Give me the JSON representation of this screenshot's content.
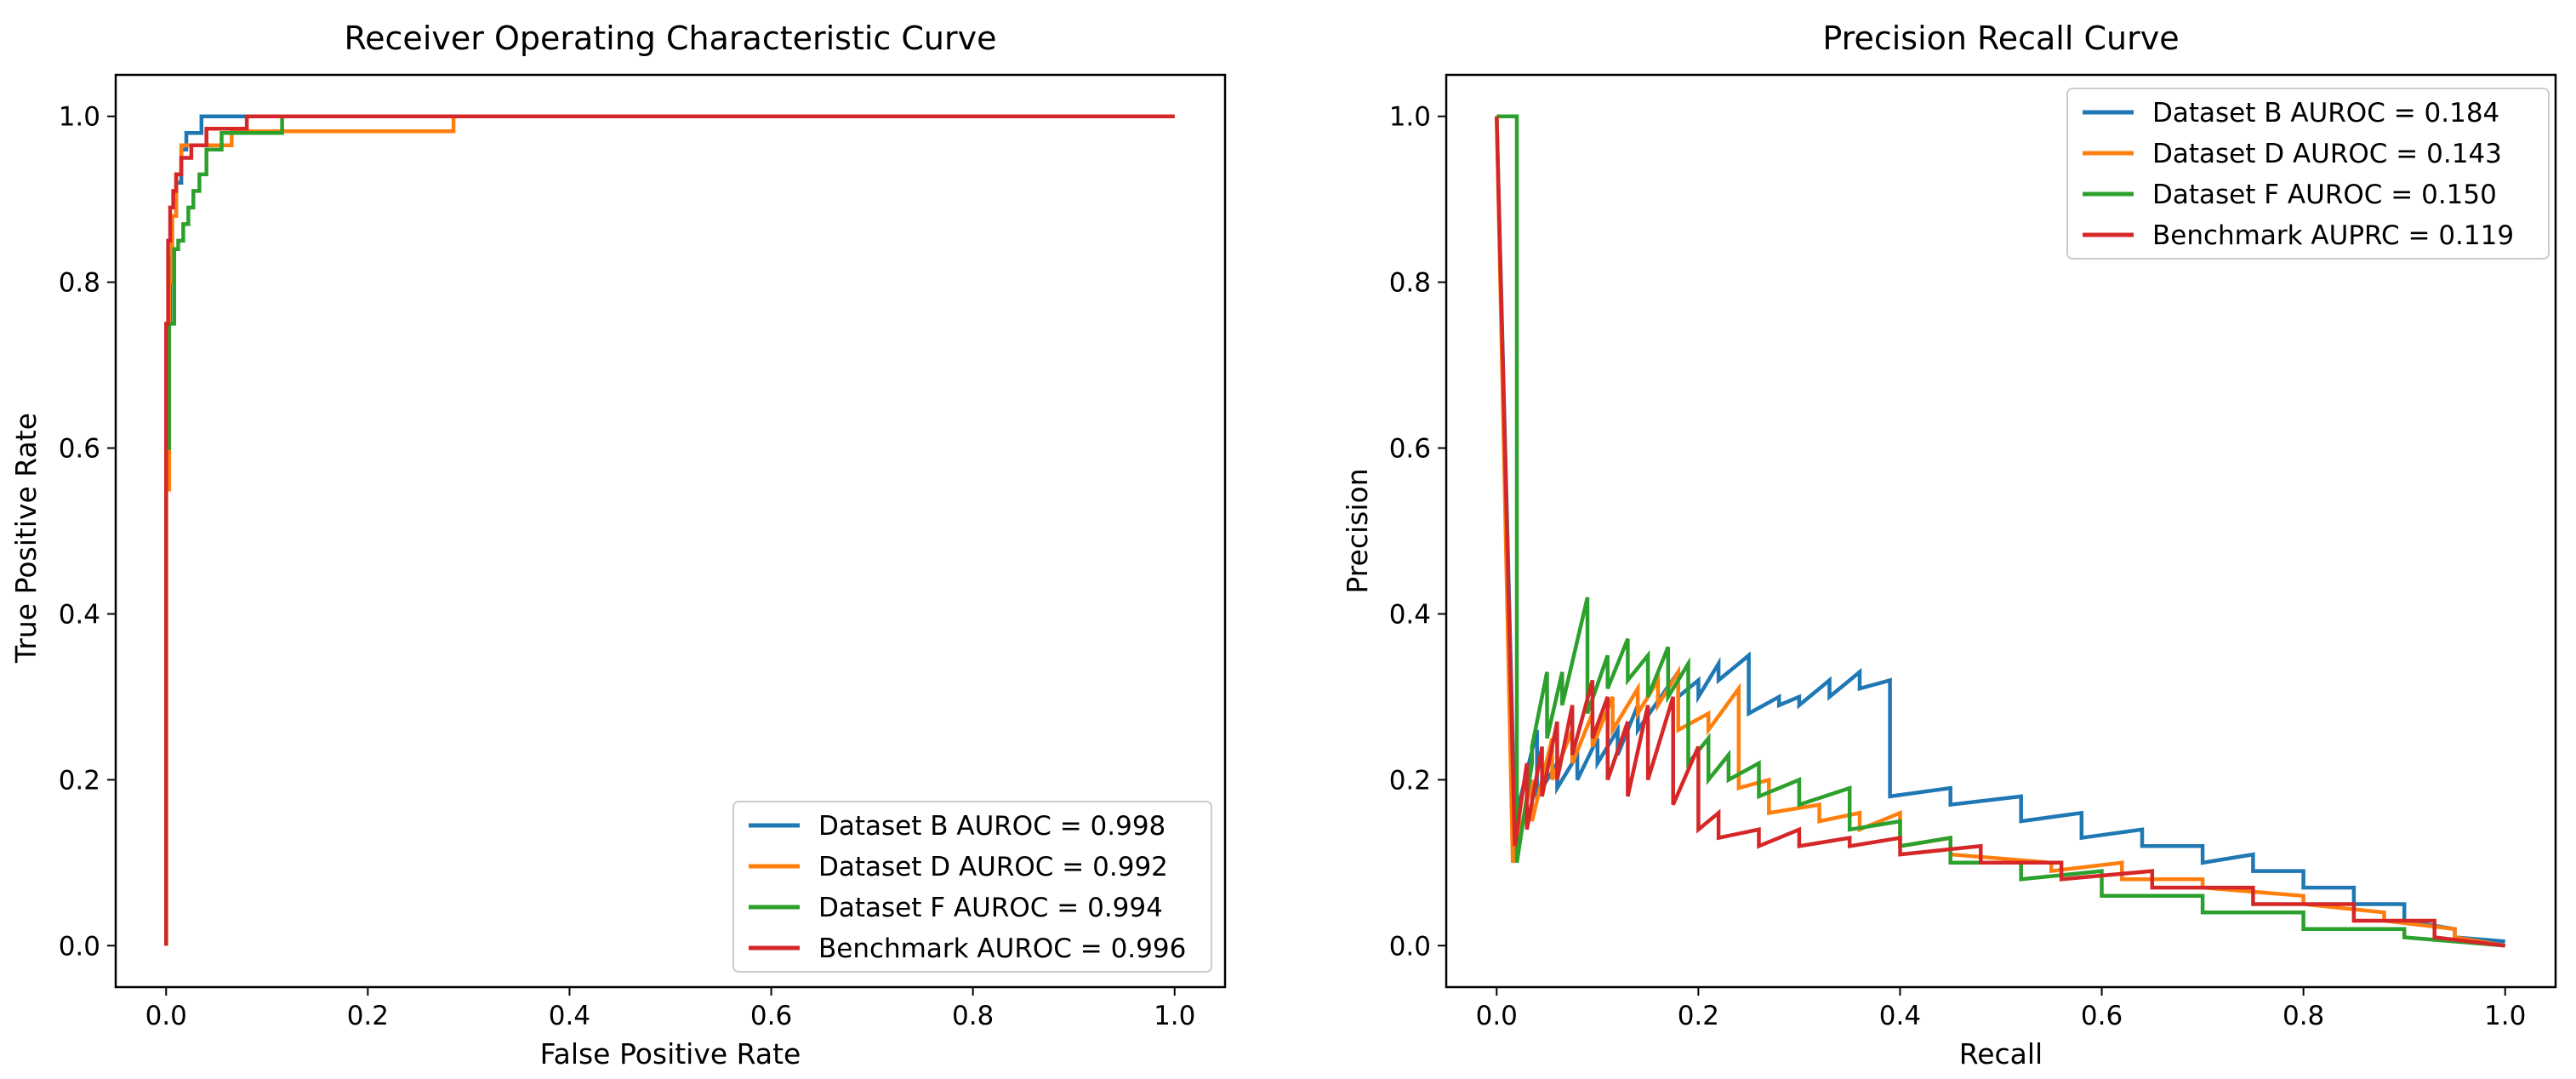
{
  "colors": {
    "blue": "#1f77b4",
    "orange": "#ff7f0e",
    "green": "#2ca02c",
    "red": "#d62728"
  },
  "chart_data": [
    {
      "id": "roc",
      "type": "line",
      "title": "Receiver Operating Characteristic Curve",
      "xlabel": "False Positive Rate",
      "ylabel": "True Positive Rate",
      "xlim": [
        -0.05,
        1.05
      ],
      "ylim": [
        -0.05,
        1.05
      ],
      "xticks": [
        0.0,
        0.2,
        0.4,
        0.6,
        0.8,
        1.0
      ],
      "yticks": [
        0.0,
        0.2,
        0.4,
        0.6,
        0.8,
        1.0
      ],
      "xtick_labels": [
        "0.0",
        "0.2",
        "0.4",
        "0.6",
        "0.8",
        "1.0"
      ],
      "ytick_labels": [
        "0.0",
        "0.2",
        "0.4",
        "0.6",
        "0.8",
        "1.0"
      ],
      "grid": false,
      "legend_position": "lower-right",
      "series": [
        {
          "name": "Dataset B AUROC = 0.998",
          "color": "#1f77b4",
          "x": [
            0,
            0,
            0.002,
            0.002,
            0.004,
            0.004,
            0.006,
            0.006,
            0.01,
            0.01,
            0.015,
            0.015,
            0.02,
            0.02,
            0.035,
            0.035,
            0.11,
            0.11,
            1.0
          ],
          "y": [
            0,
            0.6,
            0.6,
            0.75,
            0.75,
            0.83,
            0.83,
            0.88,
            0.88,
            0.92,
            0.92,
            0.96,
            0.96,
            0.98,
            0.98,
            1.0,
            1.0,
            1.0,
            1.0
          ]
        },
        {
          "name": "Dataset D AUROC = 0.992",
          "color": "#ff7f0e",
          "x": [
            0,
            0,
            0.003,
            0.003,
            0.006,
            0.006,
            0.01,
            0.01,
            0.015,
            0.015,
            0.025,
            0.025,
            0.065,
            0.065,
            0.285,
            0.285,
            1.0
          ],
          "y": [
            0,
            0.55,
            0.55,
            0.8,
            0.8,
            0.88,
            0.88,
            0.93,
            0.93,
            0.965,
            0.965,
            0.965,
            0.965,
            0.982,
            0.982,
            1.0,
            1.0
          ]
        },
        {
          "name": "Dataset F AUROC = 0.994",
          "color": "#2ca02c",
          "x": [
            0,
            0,
            0.003,
            0.003,
            0.008,
            0.008,
            0.012,
            0.012,
            0.017,
            0.017,
            0.022,
            0.022,
            0.027,
            0.027,
            0.033,
            0.033,
            0.04,
            0.04,
            0.055,
            0.055,
            0.115,
            0.115,
            1.0
          ],
          "y": [
            0,
            0.6,
            0.6,
            0.75,
            0.75,
            0.84,
            0.84,
            0.85,
            0.85,
            0.87,
            0.87,
            0.89,
            0.89,
            0.91,
            0.91,
            0.93,
            0.93,
            0.96,
            0.96,
            0.98,
            0.98,
            1.0,
            1.0
          ]
        },
        {
          "name": "Benchmark AUROC = 0.996",
          "color": "#d62728",
          "x": [
            0,
            0,
            0.002,
            0.002,
            0.004,
            0.004,
            0.007,
            0.007,
            0.01,
            0.01,
            0.015,
            0.015,
            0.025,
            0.025,
            0.04,
            0.04,
            0.08,
            0.08,
            1.0
          ],
          "y": [
            0,
            0.75,
            0.75,
            0.85,
            0.85,
            0.89,
            0.89,
            0.91,
            0.91,
            0.93,
            0.93,
            0.95,
            0.95,
            0.965,
            0.965,
            0.985,
            0.985,
            1.0,
            1.0
          ]
        }
      ]
    },
    {
      "id": "pr",
      "type": "line",
      "title": "Precision Recall Curve",
      "xlabel": "Recall",
      "ylabel": "Precision",
      "xlim": [
        -0.05,
        1.05
      ],
      "ylim": [
        -0.05,
        1.05
      ],
      "xticks": [
        0.0,
        0.2,
        0.4,
        0.6,
        0.8,
        1.0
      ],
      "yticks": [
        0.0,
        0.2,
        0.4,
        0.6,
        0.8,
        1.0
      ],
      "xtick_labels": [
        "0.0",
        "0.2",
        "0.4",
        "0.6",
        "0.8",
        "1.0"
      ],
      "ytick_labels": [
        "0.0",
        "0.2",
        "0.4",
        "0.6",
        "0.8",
        "1.0"
      ],
      "grid": false,
      "legend_position": "upper-right",
      "series": [
        {
          "name": "Dataset B AUROC = 0.184",
          "color": "#1f77b4",
          "x": [
            0.0,
            0.018,
            0.018,
            0.04,
            0.04,
            0.06,
            0.06,
            0.08,
            0.08,
            0.1,
            0.1,
            0.12,
            0.12,
            0.14,
            0.14,
            0.18,
            0.18,
            0.2,
            0.2,
            0.22,
            0.22,
            0.25,
            0.25,
            0.28,
            0.28,
            0.3,
            0.3,
            0.33,
            0.33,
            0.36,
            0.36,
            0.39,
            0.39,
            0.45,
            0.45,
            0.52,
            0.52,
            0.58,
            0.58,
            0.64,
            0.64,
            0.7,
            0.7,
            0.75,
            0.75,
            0.8,
            0.8,
            0.85,
            0.85,
            0.9,
            0.9,
            0.95,
            0.95,
            1.0
          ],
          "y": [
            1.0,
            0.15,
            0.15,
            0.26,
            0.18,
            0.22,
            0.19,
            0.23,
            0.2,
            0.25,
            0.22,
            0.26,
            0.23,
            0.29,
            0.26,
            0.33,
            0.3,
            0.32,
            0.3,
            0.34,
            0.32,
            0.35,
            0.28,
            0.3,
            0.29,
            0.3,
            0.29,
            0.32,
            0.3,
            0.33,
            0.31,
            0.32,
            0.18,
            0.19,
            0.17,
            0.18,
            0.15,
            0.16,
            0.13,
            0.14,
            0.12,
            0.12,
            0.1,
            0.11,
            0.09,
            0.09,
            0.07,
            0.07,
            0.05,
            0.05,
            0.03,
            0.02,
            0.01,
            0.005
          ]
        },
        {
          "name": "Dataset D AUROC = 0.143",
          "color": "#ff7f0e",
          "x": [
            0.0,
            0.016,
            0.016,
            0.035,
            0.035,
            0.055,
            0.055,
            0.075,
            0.075,
            0.095,
            0.095,
            0.115,
            0.115,
            0.14,
            0.14,
            0.16,
            0.16,
            0.18,
            0.18,
            0.21,
            0.21,
            0.24,
            0.24,
            0.27,
            0.27,
            0.32,
            0.32,
            0.36,
            0.36,
            0.4,
            0.4,
            0.45,
            0.45,
            0.55,
            0.55,
            0.62,
            0.62,
            0.7,
            0.7,
            0.8,
            0.8,
            0.88,
            0.88,
            0.95,
            0.95,
            1.0
          ],
          "y": [
            1.0,
            0.1,
            0.1,
            0.2,
            0.15,
            0.25,
            0.2,
            0.26,
            0.22,
            0.28,
            0.24,
            0.3,
            0.26,
            0.31,
            0.28,
            0.32,
            0.29,
            0.33,
            0.26,
            0.28,
            0.26,
            0.31,
            0.19,
            0.2,
            0.16,
            0.17,
            0.15,
            0.16,
            0.14,
            0.16,
            0.12,
            0.13,
            0.11,
            0.1,
            0.09,
            0.1,
            0.08,
            0.08,
            0.07,
            0.06,
            0.05,
            0.04,
            0.03,
            0.02,
            0.01,
            0.0
          ]
        },
        {
          "name": "Dataset F AUROC = 0.150",
          "color": "#2ca02c",
          "x": [
            0.0,
            0.0,
            0.02,
            0.02,
            0.035,
            0.035,
            0.05,
            0.05,
            0.065,
            0.065,
            0.09,
            0.09,
            0.11,
            0.11,
            0.13,
            0.13,
            0.15,
            0.15,
            0.17,
            0.17,
            0.19,
            0.19,
            0.21,
            0.21,
            0.23,
            0.23,
            0.26,
            0.26,
            0.3,
            0.3,
            0.35,
            0.35,
            0.4,
            0.4,
            0.45,
            0.45,
            0.52,
            0.52,
            0.6,
            0.6,
            0.7,
            0.7,
            0.8,
            0.8,
            0.9,
            0.9,
            1.0
          ],
          "y": [
            1.0,
            1.0,
            1.0,
            0.1,
            0.22,
            0.24,
            0.33,
            0.25,
            0.33,
            0.29,
            0.42,
            0.28,
            0.35,
            0.31,
            0.37,
            0.32,
            0.35,
            0.3,
            0.36,
            0.3,
            0.34,
            0.22,
            0.25,
            0.2,
            0.23,
            0.2,
            0.22,
            0.18,
            0.2,
            0.17,
            0.19,
            0.14,
            0.15,
            0.12,
            0.13,
            0.1,
            0.1,
            0.08,
            0.09,
            0.06,
            0.06,
            0.04,
            0.04,
            0.02,
            0.02,
            0.01,
            0.0
          ]
        },
        {
          "name": "Benchmark AUPRC = 0.119",
          "color": "#d62728",
          "x": [
            0.0,
            0.018,
            0.018,
            0.03,
            0.03,
            0.045,
            0.045,
            0.06,
            0.06,
            0.075,
            0.075,
            0.095,
            0.095,
            0.11,
            0.11,
            0.13,
            0.13,
            0.15,
            0.15,
            0.175,
            0.175,
            0.2,
            0.2,
            0.22,
            0.22,
            0.26,
            0.26,
            0.3,
            0.3,
            0.35,
            0.35,
            0.4,
            0.4,
            0.48,
            0.48,
            0.56,
            0.56,
            0.65,
            0.65,
            0.75,
            0.75,
            0.85,
            0.85,
            0.93,
            0.93,
            1.0
          ],
          "y": [
            1.0,
            0.12,
            0.12,
            0.22,
            0.14,
            0.24,
            0.18,
            0.27,
            0.2,
            0.29,
            0.23,
            0.32,
            0.25,
            0.3,
            0.2,
            0.27,
            0.18,
            0.29,
            0.2,
            0.3,
            0.17,
            0.24,
            0.14,
            0.16,
            0.13,
            0.14,
            0.12,
            0.14,
            0.12,
            0.13,
            0.12,
            0.13,
            0.11,
            0.12,
            0.1,
            0.1,
            0.08,
            0.09,
            0.07,
            0.07,
            0.05,
            0.05,
            0.03,
            0.03,
            0.01,
            0.0
          ]
        }
      ]
    }
  ]
}
